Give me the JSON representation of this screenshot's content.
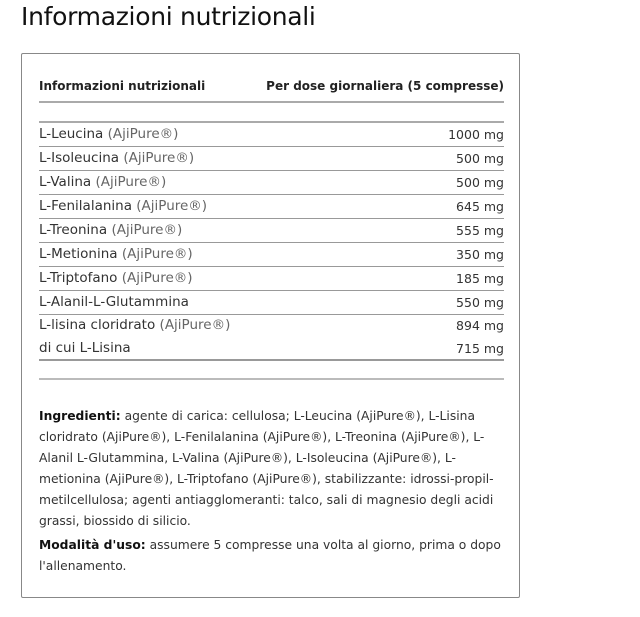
{
  "title": "Informazioni nutrizionali",
  "table": {
    "header": {
      "left": "Informazioni nutrizionali",
      "right": "Per dose giornaliera (5 compresse)"
    },
    "rows": [
      {
        "name": "L-Leucina",
        "note": "(AjiPure®)",
        "value": "1000 mg"
      },
      {
        "name": "L-Isoleucina",
        "note": "(AjiPure®)",
        "value": "500 mg"
      },
      {
        "name": "L-Valina",
        "note": "(AjiPure®)",
        "value": "500 mg"
      },
      {
        "name": "L-Fenilalanina",
        "note": "(AjiPure®)",
        "value": "645 mg"
      },
      {
        "name": "L-Treonina",
        "note": "(AjiPure®)",
        "value": "555 mg"
      },
      {
        "name": "L-Metionina",
        "note": "(AjiPure®)",
        "value": "350 mg"
      },
      {
        "name": "L-Triptofano",
        "note": "(AjiPure®)",
        "value": "185 mg"
      },
      {
        "name": "L-Alanil-L-Glutammina",
        "note": "",
        "value": "550 mg"
      }
    ],
    "lysine": {
      "name": "L-lisina cloridrato",
      "note": "(AjiPure®)",
      "value": "894 mg",
      "sub_name": "di cui L-Lisina",
      "sub_value": "715 mg"
    }
  },
  "ingredients": {
    "label": "Ingredienti:",
    "text": " agente di carica: cellulosa; L-Leucina (AjiPure®), L-Lisina cloridrato (AjiPure®), L-Fenilalanina (AjiPure®), L-Treonina (AjiPure®), L-Alanil L-Glutammina, L-Valina (AjiPure®), L-Isoleucina (AjiPure®), L-metionina (AjiPure®), L-Triptofano (AjiPure®), stabilizzante: idrossi-propil-metilcellulosa; agenti antiagglomeranti: talco, sali di magnesio degli acidi grassi, biossido di silicio."
  },
  "usage": {
    "label": "Modalità d'uso:",
    "text": " assumere 5 compresse una volta al giorno, prima o dopo l'allenamento."
  }
}
